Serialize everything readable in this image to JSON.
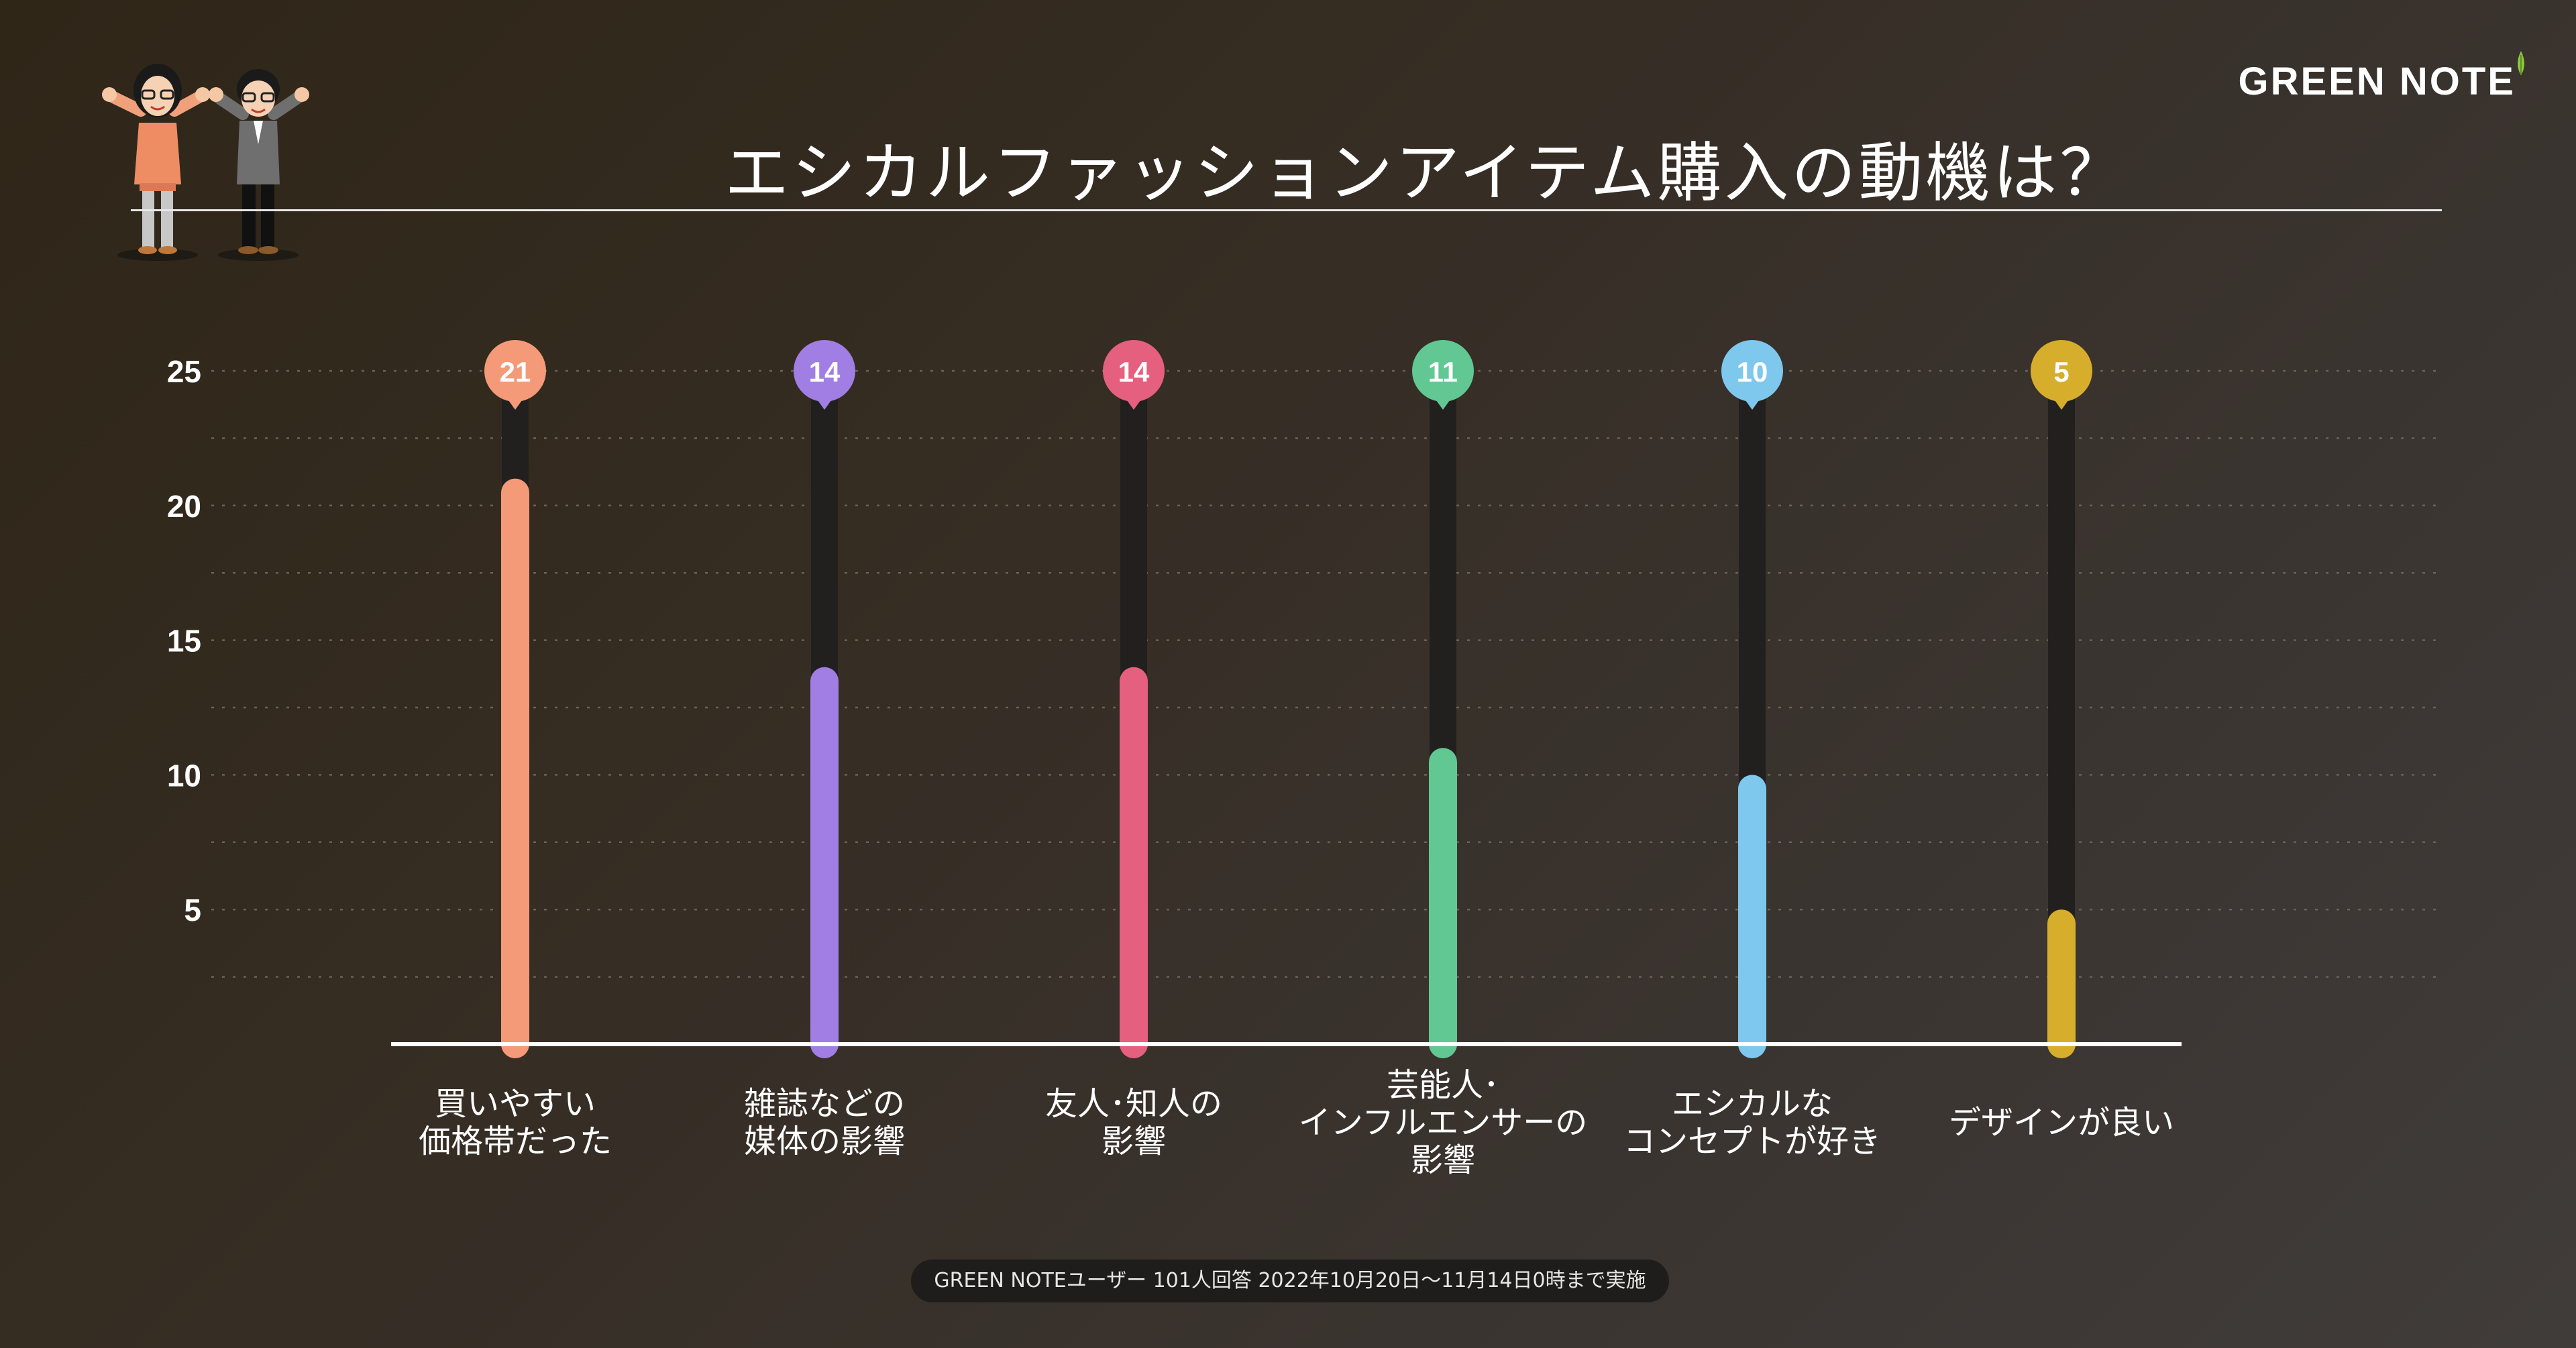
{
  "title": "エシカルファッションアイテム購入の動機は？",
  "brand": "GREEN NOTE",
  "footnote": "GREEN NOTEユーザー 101人回答 2022年10月20日〜11月14日0時まで実施",
  "chart_data": {
    "type": "bar",
    "title": "エシカルファッションアイテム購入の動機は？",
    "categories": [
      [
        "買いやすい",
        "価格帯だった"
      ],
      [
        "雑誌などの",
        "媒体の影響"
      ],
      [
        "友人･知人の",
        "影響"
      ],
      [
        "芸能人･",
        "インフルエンサーの",
        "影響"
      ],
      [
        "エシカルな",
        "コンセプトが好き"
      ],
      [
        "デザインが良い"
      ]
    ],
    "values": [
      21,
      14,
      14,
      11,
      10,
      5
    ],
    "colors": [
      "#f49a78",
      "#a07ee4",
      "#e5607e",
      "#62c893",
      "#7ec8ee",
      "#d6ae2c"
    ],
    "yticks": [
      5,
      10,
      15,
      20,
      25
    ],
    "ylim": [
      0,
      25
    ],
    "grid": true
  }
}
